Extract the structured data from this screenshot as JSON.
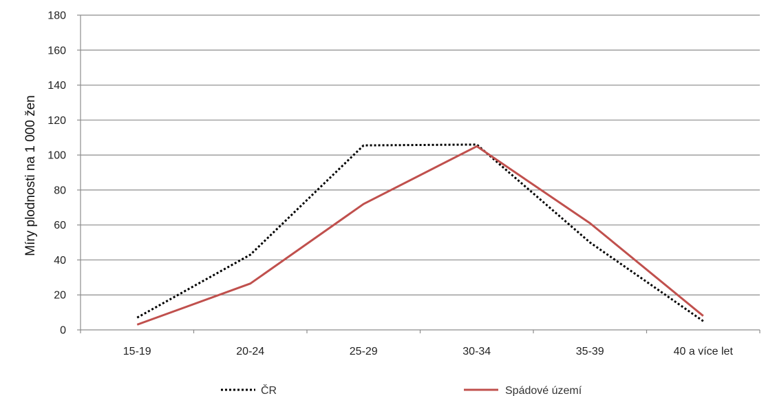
{
  "chart_data": {
    "type": "line",
    "categories": [
      "15-19",
      "20-24",
      "25-29",
      "30-34",
      "35-39",
      "40 a více let"
    ],
    "series": [
      {
        "name": "ČR",
        "values": [
          7,
          43,
          105.5,
          106,
          50,
          5
        ],
        "color": "#000000",
        "style": "dotted"
      },
      {
        "name": "Spádové území",
        "values": [
          3,
          26.5,
          72,
          105,
          61,
          8
        ],
        "color": "#c0504d",
        "style": "solid"
      }
    ],
    "ylabel": "Míry plodnosti na 1 000 žen",
    "ylim": [
      0,
      180
    ],
    "yticks": [
      0,
      20,
      40,
      60,
      80,
      100,
      120,
      140,
      160,
      180
    ],
    "grid": true,
    "legend_position": "bottom"
  }
}
